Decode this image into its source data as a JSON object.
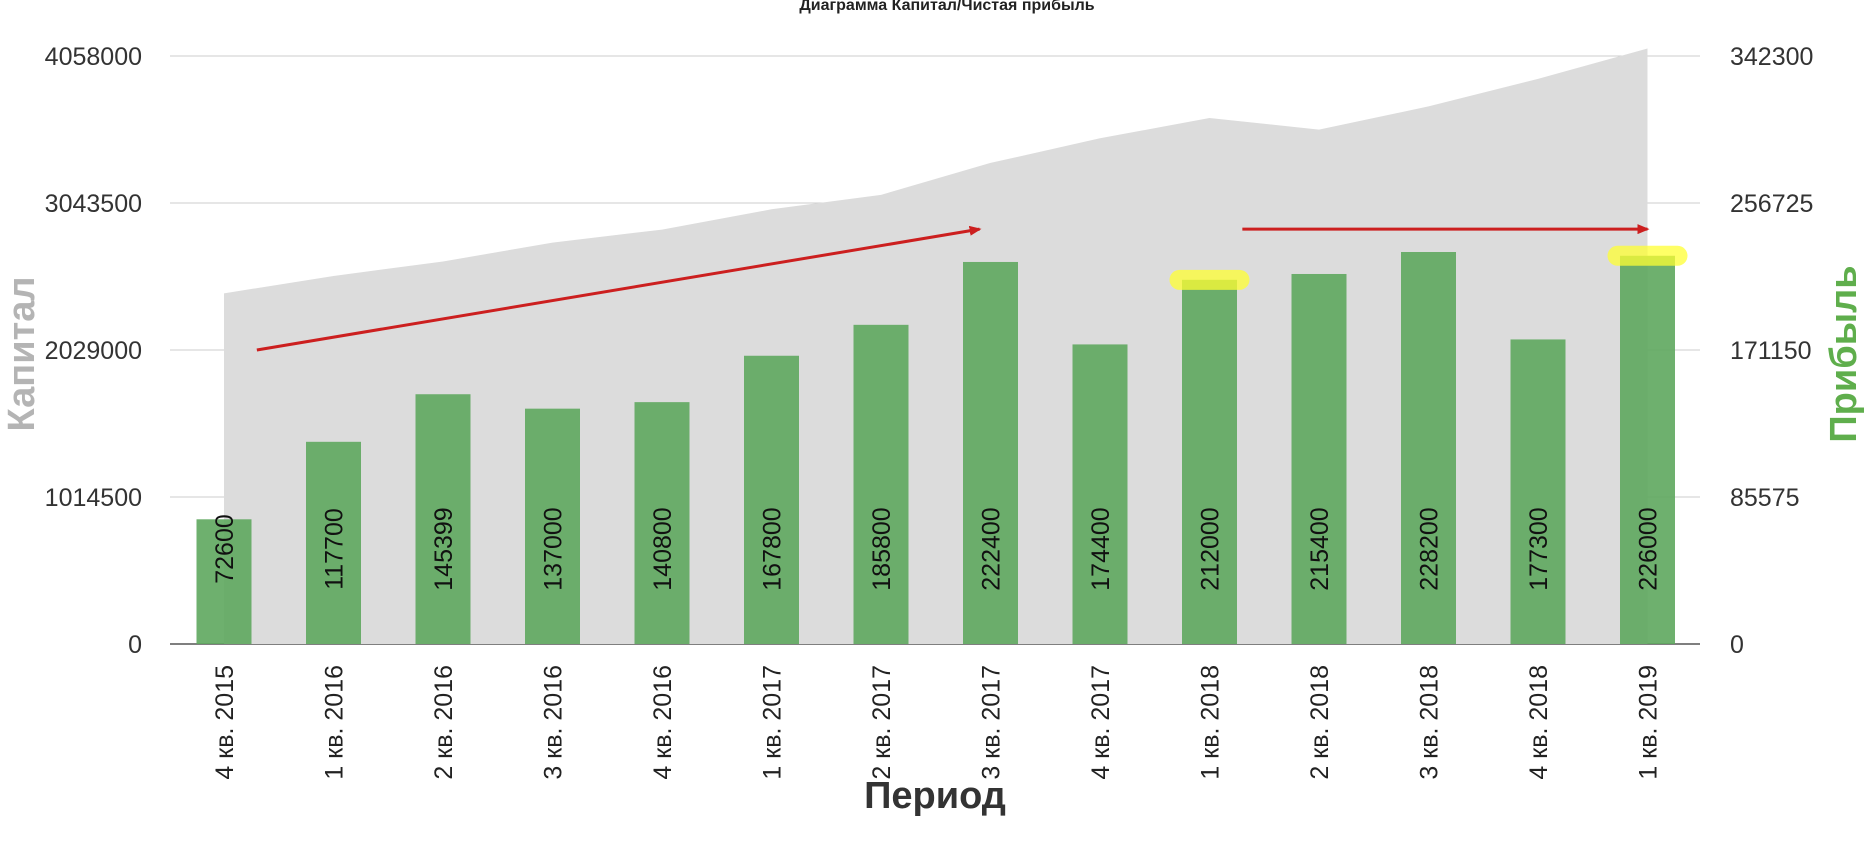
{
  "chart_data": {
    "type": "bar",
    "title": "Диаграмма Капитал/Чистая прибыль",
    "xlabel": "Период",
    "ylabel_left": "Капитал",
    "ylabel_right": "Прибыль",
    "categories": [
      "4 кв. 2015",
      "1 кв. 2016",
      "2 кв. 2016",
      "3 кв. 2016",
      "4 кв. 2016",
      "1 кв. 2017",
      "2 кв. 2017",
      "3 кв. 2017",
      "4 кв. 2017",
      "1 кв. 2018",
      "2 кв. 2018",
      "3 кв. 2018",
      "4 кв. 2018",
      "1 кв. 2019"
    ],
    "left_axis": {
      "ticks": [
        "0",
        "1014500",
        "2029000",
        "3043500",
        "4058000"
      ],
      "range": [
        0,
        4058000
      ]
    },
    "right_axis": {
      "ticks": [
        "0",
        "85575",
        "171150",
        "256725",
        "342300"
      ],
      "range": [
        0,
        342300
      ]
    },
    "series": [
      {
        "name": "Капитал",
        "kind": "area",
        "axis": "left",
        "color": "#dcdcdc",
        "values": [
          2420000,
          2540000,
          2640000,
          2770000,
          2860000,
          3000000,
          3100000,
          3320000,
          3490000,
          3630000,
          3550000,
          3710000,
          3900000,
          4110000
        ]
      },
      {
        "name": "Прибыль",
        "kind": "bar",
        "axis": "right",
        "color": "#5ea75e",
        "values": [
          72600,
          117700,
          145399,
          137000,
          140800,
          167800,
          185800,
          222400,
          174400,
          212000,
          215400,
          228200,
          177300,
          226000
        ],
        "labels": [
          "72600",
          "117700",
          "145399",
          "137000",
          "140800",
          "167800",
          "185800",
          "222400",
          "174400",
          "212000",
          "215400",
          "228200",
          "177300",
          "226000"
        ]
      }
    ],
    "grid": true,
    "annotations": {
      "arrow_color": "#cc1f1f",
      "highlight_color": "#ffff33",
      "arrows": [
        {
          "from": [
            0.3,
            171150
          ],
          "to": [
            6.9,
            241500
          ]
        },
        {
          "from": [
            9.3,
            241500
          ],
          "to": [
            13.0,
            241500
          ]
        }
      ],
      "highlights": [
        {
          "category": 9,
          "value": 212000
        },
        {
          "category": 13,
          "value": 226000
        }
      ]
    }
  }
}
